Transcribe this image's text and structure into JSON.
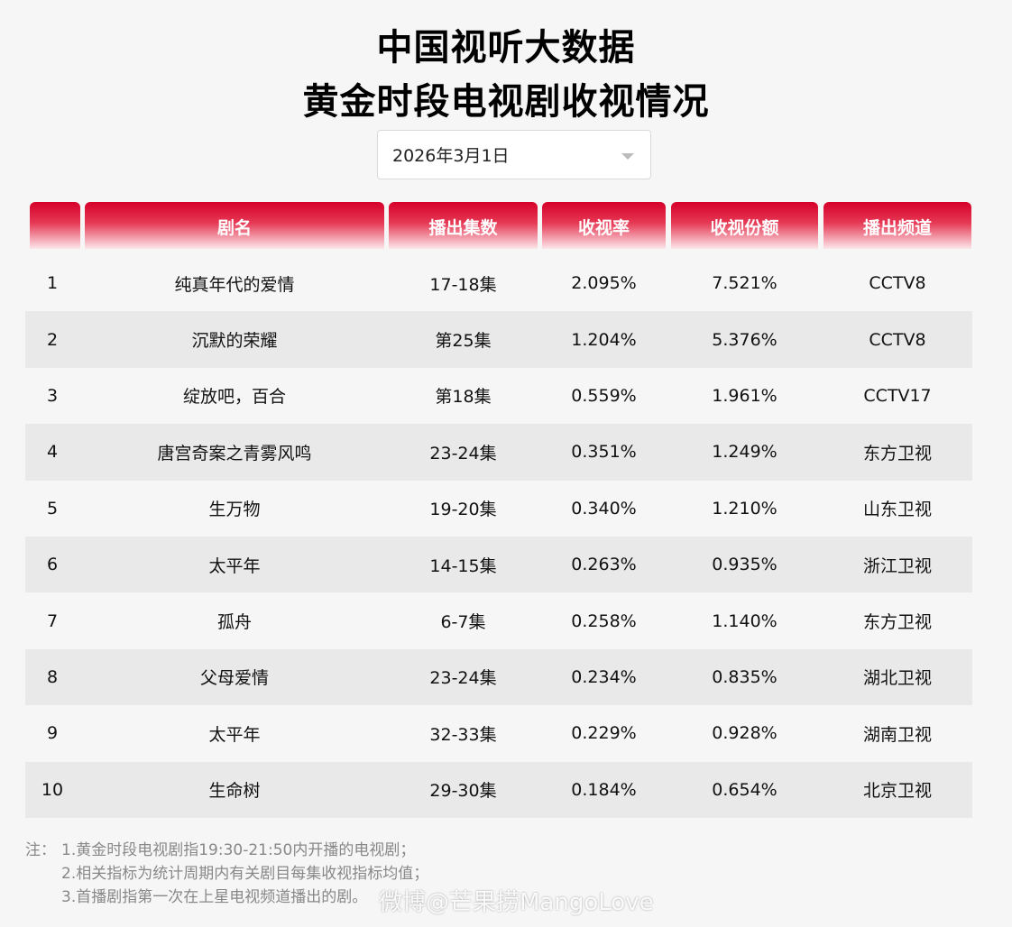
{
  "title": {
    "line1": "中国视听大数据",
    "line2": "黄金时段电视剧收视情况"
  },
  "date_select": {
    "value": "2026年3月1日",
    "icon": "chevron-down-icon"
  },
  "table": {
    "headers": [
      "",
      "剧名",
      "播出集数",
      "收视率",
      "收视份额",
      "播出频道"
    ],
    "rows": [
      [
        "1",
        "纯真年代的爱情",
        "17-18集",
        "2.095%",
        "7.521%",
        "CCTV8"
      ],
      [
        "2",
        "沉默的荣耀",
        "第25集",
        "1.204%",
        "5.376%",
        "CCTV8"
      ],
      [
        "3",
        "绽放吧，百合",
        "第18集",
        "0.559%",
        "1.961%",
        "CCTV17"
      ],
      [
        "4",
        "唐宫奇案之青雾风鸣",
        "23-24集",
        "0.351%",
        "1.249%",
        "东方卫视"
      ],
      [
        "5",
        "生万物",
        "19-20集",
        "0.340%",
        "1.210%",
        "山东卫视"
      ],
      [
        "6",
        "太平年",
        "14-15集",
        "0.263%",
        "0.935%",
        "浙江卫视"
      ],
      [
        "7",
        "孤舟",
        "6-7集",
        "0.258%",
        "1.140%",
        "东方卫视"
      ],
      [
        "8",
        "父母爱情",
        "23-24集",
        "0.234%",
        "0.835%",
        "湖北卫视"
      ],
      [
        "9",
        "太平年",
        "32-33集",
        "0.229%",
        "0.928%",
        "湖南卫视"
      ],
      [
        "10",
        "生命树",
        "29-30集",
        "0.184%",
        "0.654%",
        "北京卫视"
      ]
    ]
  },
  "notes": {
    "label": "注：",
    "items": [
      "1.黄金时段电视剧指19:30-21:50内开播的电视剧；",
      "2.相关指标为统计周期内有关剧目每集收视指标均值；",
      "3.首播剧指第一次在上星电视频道播出的剧。"
    ]
  },
  "watermark": "微博@芒果捞MangoLove",
  "colors": {
    "header_red": "#d6002a",
    "alt_row": "#e9e9e9",
    "background": "#f6f6f6"
  }
}
